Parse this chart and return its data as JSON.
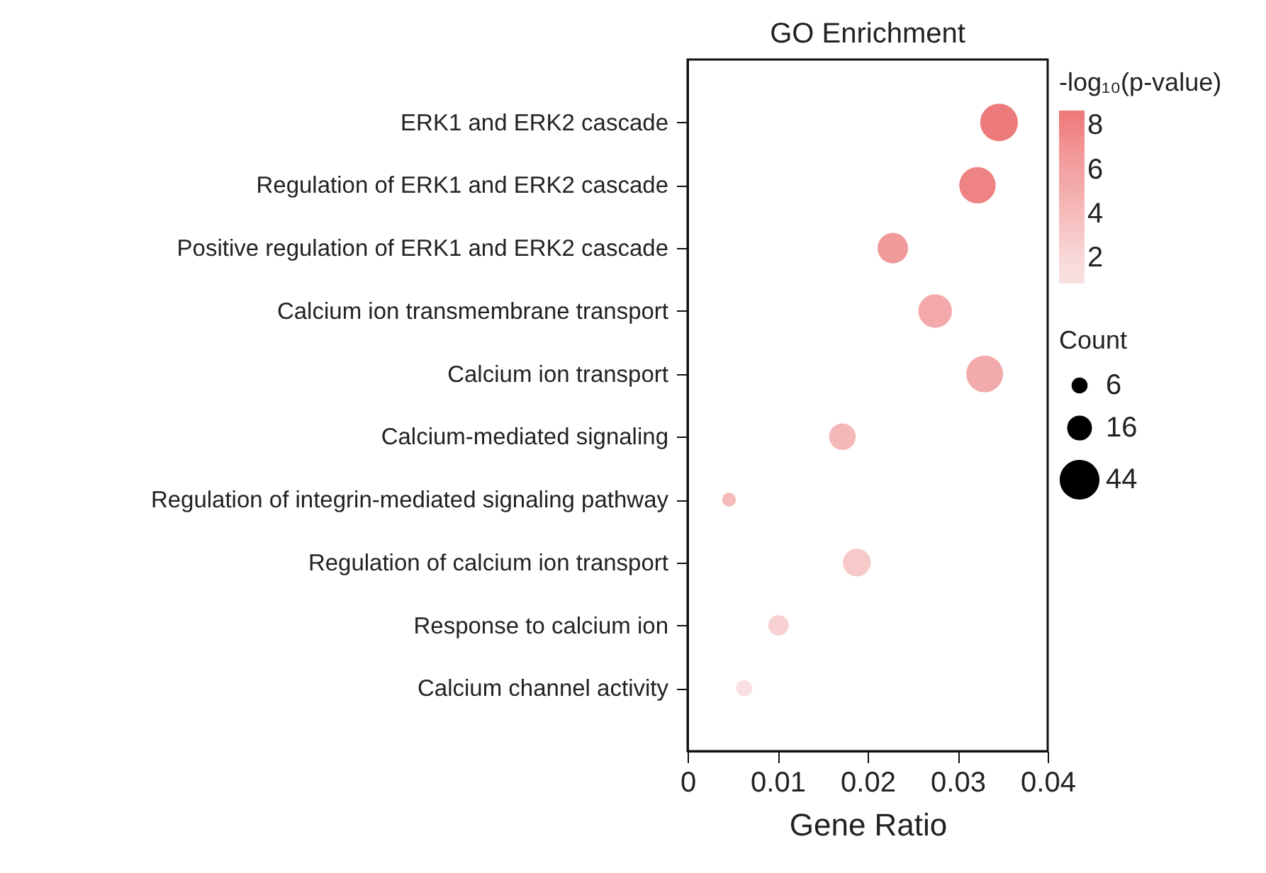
{
  "chart_data": {
    "type": "bubble",
    "title": "GO Enrichment",
    "xlabel": "Gene Ratio",
    "legend_title": "Count",
    "clabel": "-log₁₀(p-value)",
    "categories": [
      "ERK1 and ERK2 cascade",
      "Regulation of ERK1 and ERK2 cascade",
      "Positive regulation of ERK1 and ERK2 cascade",
      "Calcium ion transmembrane transport",
      "Calcium ion transport",
      "Calcium-mediated signaling",
      "Regulation of integrin-mediated signaling pathway",
      "Regulation of calcium ion transport",
      "Response to calcium ion",
      "Calcium channel activity"
    ],
    "values": [
      0.0346,
      0.0322,
      0.0228,
      0.0275,
      0.033,
      0.0172,
      0.0046,
      0.0188,
      0.0101,
      0.0063
    ],
    "sizes": [
      44,
      41,
      29,
      35,
      42,
      22,
      6,
      24,
      13,
      8
    ],
    "cvalues": [
      8.5,
      8.0,
      6.6,
      5.3,
      5.2,
      4.3,
      4.2,
      3.0,
      2.4,
      1.3
    ],
    "colors": [
      "#ee7b7b",
      "#ef8383",
      "#f19a9a",
      "#f3a9a9",
      "#f3aaaa",
      "#f5b8b8",
      "#f5baba",
      "#f7c9c9",
      "#f8d2d2",
      "#f9dfdf"
    ],
    "size_legend": [
      6,
      16,
      44
    ],
    "clim": [
      0.84,
      8.69
    ],
    "cticks": [
      2,
      4,
      6,
      8
    ],
    "xlim": [
      0,
      0.04
    ],
    "xticks": [
      0,
      0.01,
      0.02,
      0.03,
      0.04
    ],
    "orientation": "horizontal",
    "grid": false,
    "marker": "circle"
  }
}
